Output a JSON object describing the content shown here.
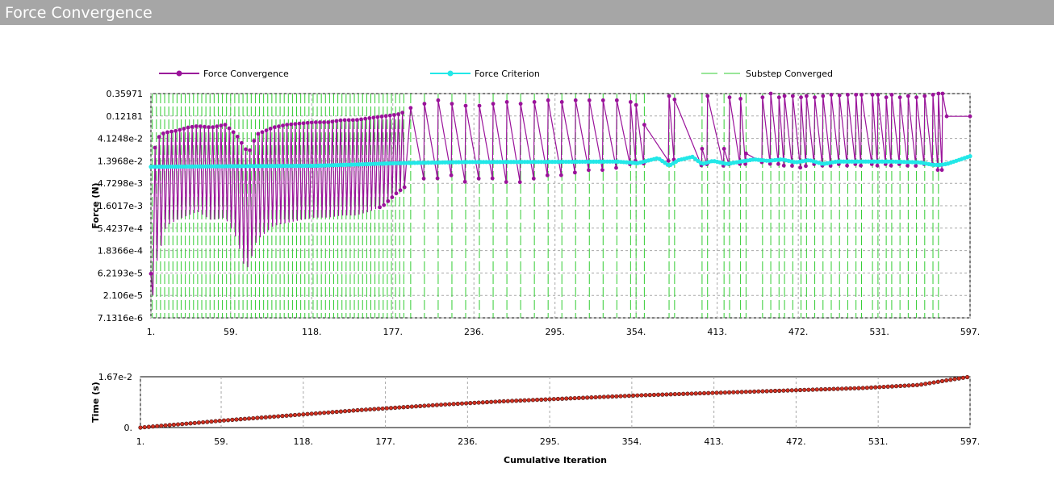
{
  "window": {
    "title": "Force Convergence"
  },
  "colors": {
    "force_convergence": "#9a129a",
    "force_criterion": "#22e8e8",
    "substep_converged": "#33cc33",
    "time_marker": "#d03020",
    "grid": "#a8a8a8",
    "titlebar": "#a6a6a6"
  },
  "chart_data": [
    {
      "type": "line",
      "ylabel": "Force (N)",
      "y_scale": "log",
      "xlim": [
        1,
        597
      ],
      "x_ticks": [
        "1.",
        "59.",
        "118.",
        "177.",
        "236.",
        "295.",
        "354.",
        "413.",
        "472.",
        "531.",
        "597."
      ],
      "x_tick_values": [
        1,
        59,
        118,
        177,
        236,
        295,
        354,
        413,
        472,
        531,
        597
      ],
      "y_ticks": [
        "0.35971",
        "0.12181",
        "4.1248e-2",
        "1.3968e-2",
        "4.7298e-3",
        "1.6017e-3",
        "5.4237e-4",
        "1.8366e-4",
        "6.2193e-5",
        "2.106e-5",
        "7.1316e-6"
      ],
      "y_tick_values": [
        0.35971,
        0.12181,
        0.041248,
        0.013968,
        0.0047298,
        0.0016017,
        0.00054237,
        0.00018366,
        6.2193e-05,
        2.106e-05,
        7.1316e-06
      ],
      "ylim": [
        7.1316e-06,
        0.35971
      ],
      "legend": [
        {
          "name": "Force Convergence",
          "style": "line-marker"
        },
        {
          "name": "Force Criterion",
          "style": "line-marker"
        },
        {
          "name": "Substep Converged",
          "style": "dashed"
        }
      ],
      "legend_placement": "top",
      "grid": true,
      "series": [
        {
          "name": "Force Convergence",
          "x": [
            1,
            3,
            5,
            8,
            12,
            20,
            28,
            35,
            45,
            55,
            60,
            64,
            68,
            72,
            78,
            90,
            100,
            110,
            120,
            130,
            140,
            150,
            160,
            170,
            180,
            186,
            190,
            200,
            210,
            220,
            230,
            240,
            250,
            260,
            270,
            280,
            290,
            300,
            310,
            320,
            330,
            340,
            350,
            355,
            360,
            365,
            370,
            378,
            382,
            390,
            395,
            402,
            406,
            410,
            418,
            422,
            430,
            434,
            440,
            446,
            452,
            458,
            462,
            468,
            474,
            478,
            484,
            490,
            496,
            502,
            508,
            514,
            518,
            526,
            530,
            536,
            540,
            546,
            552,
            558,
            564,
            570,
            572,
            574,
            577,
            580,
            590,
            597
          ],
          "y_high": [
            6e-05,
            0.02,
            0.035,
            0.05,
            0.055,
            0.06,
            0.07,
            0.075,
            0.07,
            0.08,
            0.06,
            0.045,
            0.03,
            0.02,
            0.05,
            0.07,
            0.08,
            0.085,
            0.09,
            0.09,
            0.1,
            0.1,
            0.11,
            0.12,
            0.13,
            0.15,
            0.18,
            0.22,
            0.26,
            0.22,
            0.2,
            0.2,
            0.22,
            0.24,
            0.22,
            0.24,
            0.26,
            0.24,
            0.26,
            0.26,
            0.26,
            0.26,
            0.24,
            0.2,
            0.08,
            0.025,
            0.25,
            0.32,
            0.27,
            0.08,
            0.025,
            0.025,
            0.32,
            0.3,
            0.025,
            0.3,
            0.28,
            0.02,
            0.28,
            0.3,
            0.36,
            0.3,
            0.32,
            0.32,
            0.3,
            0.32,
            0.3,
            0.32,
            0.34,
            0.33,
            0.34,
            0.34,
            0.34,
            0.34,
            0.34,
            0.3,
            0.34,
            0.3,
            0.32,
            0.3,
            0.32,
            0.34,
            0.3,
            0.36,
            0.36,
            0.12,
            0.12,
            0.12
          ],
          "y_low": [
            7.2e-06,
            3e-05,
            0.0001,
            0.0002,
            0.0006,
            0.0008,
            0.001,
            0.0012,
            0.0008,
            0.0009,
            0.0005,
            0.0003,
            0.0001,
            8e-05,
            0.0003,
            0.0006,
            0.0007,
            0.0008,
            0.0009,
            0.0009,
            0.001,
            0.001,
            0.0012,
            0.0016,
            0.003,
            0.004,
            0.005,
            0.006,
            0.006,
            0.007,
            0.005,
            0.006,
            0.006,
            0.005,
            0.005,
            0.006,
            0.007,
            0.007,
            0.008,
            0.009,
            0.009,
            0.01,
            0.012,
            0.015,
            0.012,
            0.013,
            0.014,
            0.014,
            0.015,
            0.015,
            0.015,
            0.011,
            0.012,
            0.012,
            0.011,
            0.012,
            0.012,
            0.012,
            0.014,
            0.013,
            0.012,
            0.012,
            0.011,
            0.011,
            0.01,
            0.011,
            0.012,
            0.011,
            0.011,
            0.012,
            0.011,
            0.012,
            0.011,
            0.012,
            0.011,
            0.012,
            0.011,
            0.012,
            0.011,
            0.011,
            0.012,
            0.012,
            0.009,
            0.009,
            0.009,
            0.12,
            0.12,
            0.12
          ]
        },
        {
          "name": "Force Criterion",
          "x": [
            1,
            60,
            120,
            180,
            230,
            290,
            340,
            355,
            362,
            370,
            378,
            385,
            395,
            402,
            410,
            420,
            430,
            440,
            450,
            460,
            470,
            480,
            490,
            500,
            520,
            540,
            560,
            570,
            575,
            580,
            597
          ],
          "y": [
            0.0105,
            0.0108,
            0.011,
            0.0125,
            0.0132,
            0.0133,
            0.0135,
            0.0125,
            0.014,
            0.016,
            0.011,
            0.0145,
            0.017,
            0.012,
            0.014,
            0.012,
            0.0135,
            0.015,
            0.014,
            0.015,
            0.013,
            0.0145,
            0.012,
            0.0135,
            0.0135,
            0.0135,
            0.013,
            0.0115,
            0.0115,
            0.012,
            0.0175
          ]
        },
        {
          "name": "Substep Converged",
          "note_type": "vertical-markers",
          "x_dense_end": 186,
          "x_sparse": [
            190,
            200,
            210,
            220,
            230,
            240,
            250,
            260,
            270,
            280,
            290,
            300,
            310,
            320,
            330,
            340,
            350,
            354,
            360,
            378,
            382,
            402,
            406,
            418,
            422,
            430,
            434,
            446,
            452,
            458,
            462,
            468,
            474,
            478,
            484,
            490,
            496,
            502,
            508,
            514,
            518,
            526,
            530,
            536,
            540,
            546,
            552,
            558,
            564,
            570,
            574
          ]
        }
      ]
    },
    {
      "type": "scatter",
      "xlabel": "Cumulative Iteration",
      "ylabel": "Time (s)",
      "xlim": [
        1,
        597
      ],
      "ylim": [
        0,
        0.0167
      ],
      "x_ticks": [
        "1.",
        "59.",
        "118.",
        "177.",
        "236.",
        "295.",
        "354.",
        "413.",
        "472.",
        "531.",
        "597."
      ],
      "x_tick_values": [
        1,
        59,
        118,
        177,
        236,
        295,
        354,
        413,
        472,
        531,
        597
      ],
      "y_ticks": [
        "1.67e-2",
        "0."
      ],
      "y_tick_values": [
        0.0167,
        0
      ],
      "grid": true,
      "series": [
        {
          "name": "Time",
          "x": [
            1,
            20,
            40,
            60,
            80,
            100,
            120,
            140,
            160,
            180,
            200,
            220,
            240,
            260,
            280,
            300,
            320,
            340,
            360,
            380,
            400,
            420,
            440,
            460,
            480,
            500,
            520,
            540,
            560,
            580,
            597
          ],
          "y": [
            0,
            0.00075,
            0.0015,
            0.0023,
            0.003,
            0.0037,
            0.0044,
            0.0051,
            0.0058,
            0.0064,
            0.007,
            0.0076,
            0.0081,
            0.0086,
            0.009,
            0.0094,
            0.0098,
            0.0102,
            0.0106,
            0.0109,
            0.0112,
            0.0115,
            0.0118,
            0.0121,
            0.0124,
            0.0127,
            0.013,
            0.0135,
            0.014,
            0.0155,
            0.0167
          ]
        }
      ]
    }
  ]
}
